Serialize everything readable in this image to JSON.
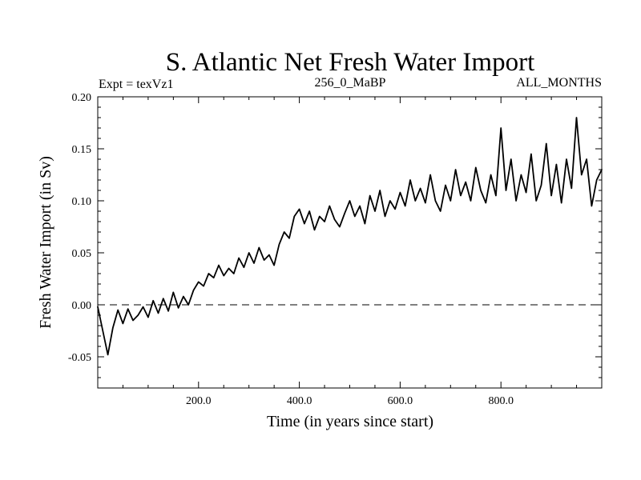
{
  "chart_data": {
    "type": "line",
    "title": "S. Atlantic Net Fresh Water Import",
    "subtitle_left": "Expt = texVz1",
    "subtitle_center": "256_0_MaBP",
    "subtitle_right": "ALL_MONTHS",
    "xlabel": "Time (in years since start)",
    "ylabel": "Fresh Water Import (in Sv)",
    "xlim": [
      0,
      1000
    ],
    "ylim": [
      -0.08,
      0.2
    ],
    "xticks": [
      200,
      400,
      600,
      800
    ],
    "xtick_labels": [
      "200.0",
      "400.0",
      "600.0",
      "800.0"
    ],
    "yticks": [
      -0.05,
      0.0,
      0.05,
      0.1,
      0.15,
      0.2
    ],
    "ytick_labels": [
      "-0.05",
      "0.00",
      "0.05",
      "0.10",
      "0.15",
      "0.20"
    ],
    "reference_line": {
      "y": 0.0,
      "style": "dashed"
    },
    "series": [
      {
        "name": "Net Fresh Water Import",
        "color": "#000000",
        "x": [
          0,
          10,
          20,
          30,
          40,
          50,
          60,
          70,
          80,
          90,
          100,
          110,
          120,
          130,
          140,
          150,
          160,
          170,
          180,
          190,
          200,
          210,
          220,
          230,
          240,
          250,
          260,
          270,
          280,
          290,
          300,
          310,
          320,
          330,
          340,
          350,
          360,
          370,
          380,
          390,
          400,
          410,
          420,
          430,
          440,
          450,
          460,
          470,
          480,
          490,
          500,
          510,
          520,
          530,
          540,
          550,
          560,
          570,
          580,
          590,
          600,
          610,
          620,
          630,
          640,
          650,
          660,
          670,
          680,
          690,
          700,
          710,
          720,
          730,
          740,
          750,
          760,
          770,
          780,
          790,
          800,
          810,
          820,
          830,
          840,
          850,
          860,
          870,
          880,
          890,
          900,
          910,
          920,
          930,
          940,
          950,
          960,
          970,
          980,
          990,
          1000
        ],
        "y": [
          -0.002,
          -0.025,
          -0.048,
          -0.022,
          -0.005,
          -0.018,
          -0.004,
          -0.015,
          -0.01,
          -0.002,
          -0.012,
          0.004,
          -0.008,
          0.006,
          -0.006,
          0.012,
          -0.003,
          0.008,
          0.0,
          0.014,
          0.022,
          0.018,
          0.03,
          0.026,
          0.038,
          0.028,
          0.035,
          0.03,
          0.045,
          0.036,
          0.05,
          0.04,
          0.055,
          0.043,
          0.048,
          0.038,
          0.058,
          0.07,
          0.064,
          0.085,
          0.092,
          0.078,
          0.09,
          0.072,
          0.085,
          0.08,
          0.095,
          0.082,
          0.075,
          0.088,
          0.1,
          0.085,
          0.095,
          0.078,
          0.105,
          0.09,
          0.11,
          0.085,
          0.1,
          0.092,
          0.108,
          0.095,
          0.12,
          0.1,
          0.112,
          0.098,
          0.125,
          0.1,
          0.09,
          0.115,
          0.1,
          0.13,
          0.105,
          0.118,
          0.1,
          0.132,
          0.11,
          0.098,
          0.125,
          0.105,
          0.17,
          0.11,
          0.14,
          0.1,
          0.125,
          0.108,
          0.145,
          0.1,
          0.115,
          0.155,
          0.105,
          0.135,
          0.098,
          0.14,
          0.112,
          0.18,
          0.125,
          0.14,
          0.095,
          0.12,
          0.13
        ]
      }
    ]
  }
}
